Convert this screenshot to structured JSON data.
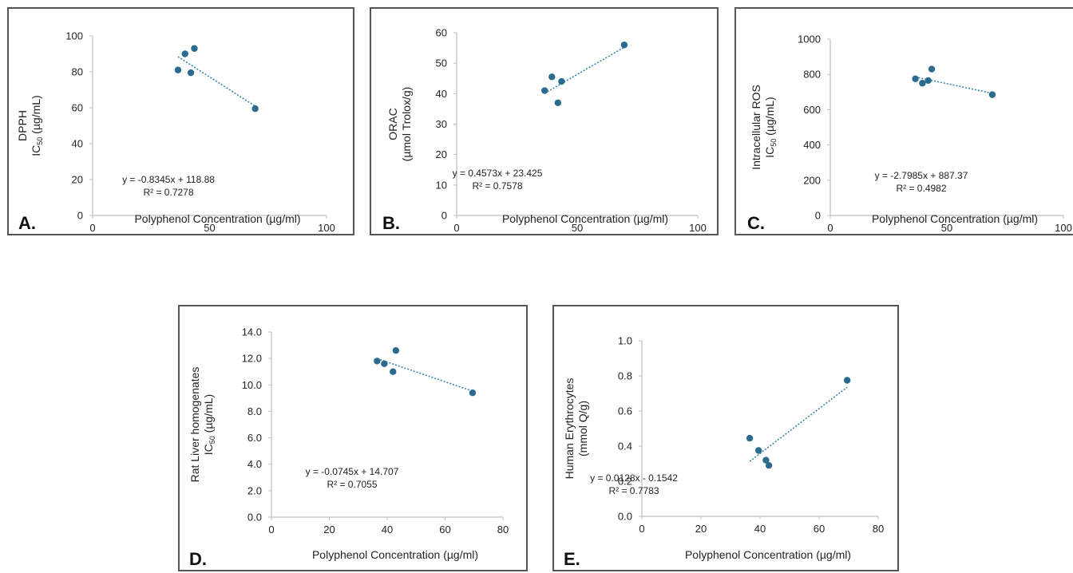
{
  "chart_data": [
    {
      "id": "A",
      "type": "scatter",
      "panel_label": "A.",
      "xlabel": "Polyphenol Concentration (µg/ml)",
      "ylabel_lines": [
        "DPPH",
        "IC50 (µg/mL)"
      ],
      "xlim": [
        0,
        100
      ],
      "xticks": [
        0,
        50,
        100
      ],
      "ylim": [
        0,
        100
      ],
      "yticks": [
        0,
        20,
        40,
        60,
        80,
        100
      ],
      "points": [
        {
          "x": 36.5,
          "y": 81
        },
        {
          "x": 39.5,
          "y": 90
        },
        {
          "x": 42,
          "y": 79.5
        },
        {
          "x": 43.5,
          "y": 93
        },
        {
          "x": 69.5,
          "y": 59.5
        }
      ],
      "trendline": {
        "slope": -0.8345,
        "intercept": 118.88,
        "x_range": [
          36.5,
          69.5
        ]
      },
      "equation": "y = -0.8345x + 118.88",
      "r2": "R² = 0.7278",
      "grid": false
    },
    {
      "id": "B",
      "type": "scatter",
      "panel_label": "B.",
      "xlabel": "Polyphenol Concentration (µg/ml)",
      "ylabel_lines": [
        "ORAC",
        "(µmol Trolox/g)"
      ],
      "xlim": [
        0,
        100
      ],
      "xticks": [
        0,
        50,
        100
      ],
      "ylim": [
        0,
        60
      ],
      "yticks": [
        0,
        10,
        20,
        30,
        40,
        50,
        60
      ],
      "points": [
        {
          "x": 36.5,
          "y": 41
        },
        {
          "x": 39.5,
          "y": 45.5
        },
        {
          "x": 42,
          "y": 37
        },
        {
          "x": 43.5,
          "y": 44
        },
        {
          "x": 69.5,
          "y": 56
        }
      ],
      "trendline": {
        "slope": 0.4573,
        "intercept": 23.425,
        "x_range": [
          36.5,
          69.5
        ]
      },
      "equation": "y = 0.4573x + 23.425",
      "r2": "R² = 0.7578",
      "grid": false
    },
    {
      "id": "C",
      "type": "scatter",
      "panel_label": "C.",
      "xlabel": "Polyphenol Concentration (µg/ml)",
      "ylabel_lines": [
        "Intracellular ROS",
        "IC50 (µg/mL)"
      ],
      "xlim": [
        0,
        100
      ],
      "xticks": [
        0,
        50,
        100
      ],
      "ylim": [
        0,
        1000
      ],
      "yticks": [
        0,
        200,
        400,
        600,
        800,
        1000
      ],
      "points": [
        {
          "x": 36.5,
          "y": 775
        },
        {
          "x": 39.5,
          "y": 750
        },
        {
          "x": 42,
          "y": 765
        },
        {
          "x": 43.5,
          "y": 830
        },
        {
          "x": 69.5,
          "y": 685
        }
      ],
      "trendline": {
        "slope": -2.7985,
        "intercept": 887.37,
        "x_range": [
          36.5,
          69.5
        ]
      },
      "equation": "y = -2.7985x + 887.37",
      "r2": "R² = 0.4982",
      "grid": false
    },
    {
      "id": "D",
      "type": "scatter",
      "panel_label": "D.",
      "xlabel": "Polyphenol Concentration (µg/ml)",
      "ylabel_lines": [
        "Rat Liver homogenates",
        "IC50 (µg/mL)"
      ],
      "xlim": [
        0,
        80
      ],
      "xticks": [
        0,
        20,
        40,
        60,
        80
      ],
      "ylim": [
        0,
        14
      ],
      "yticks": [
        0.0,
        2.0,
        4.0,
        6.0,
        8.0,
        10.0,
        12.0,
        14.0
      ],
      "ytick_decimals": 1,
      "points": [
        {
          "x": 36.5,
          "y": 11.8
        },
        {
          "x": 39,
          "y": 11.6
        },
        {
          "x": 42,
          "y": 11.0
        },
        {
          "x": 43,
          "y": 12.6
        },
        {
          "x": 69.5,
          "y": 9.4
        }
      ],
      "trendline": {
        "slope": -0.0745,
        "intercept": 14.707,
        "x_range": [
          36.5,
          69.5
        ]
      },
      "equation": "y = -0.0745x + 14.707",
      "r2": "R² = 0.7055",
      "grid": false
    },
    {
      "id": "E",
      "type": "scatter",
      "panel_label": "E.",
      "xlabel": "Polyphenol Concentration (µg/ml)",
      "ylabel_lines": [
        "Human Erythrocytes",
        "(mmol Q/g)"
      ],
      "xlim": [
        0,
        80
      ],
      "xticks": [
        0,
        20,
        40,
        60,
        80
      ],
      "ylim": [
        0,
        1
      ],
      "yticks": [
        0.0,
        0.2,
        0.4,
        0.6,
        0.8,
        1.0
      ],
      "ytick_decimals": 1,
      "points": [
        {
          "x": 36.5,
          "y": 0.445
        },
        {
          "x": 39.5,
          "y": 0.375
        },
        {
          "x": 42,
          "y": 0.32
        },
        {
          "x": 43,
          "y": 0.29
        },
        {
          "x": 69.5,
          "y": 0.775
        }
      ],
      "trendline": {
        "slope": 0.0128,
        "intercept": -0.1542,
        "x_range": [
          36.5,
          69.5
        ]
      },
      "equation": "y = 0.0128x - 0.1542",
      "r2": "R² = 0.7783",
      "grid": false
    }
  ],
  "colors": {
    "marker": "#2a6b8e",
    "trendline": "#3a86b0",
    "axis": "#bfbfbf",
    "border": "#555555"
  }
}
